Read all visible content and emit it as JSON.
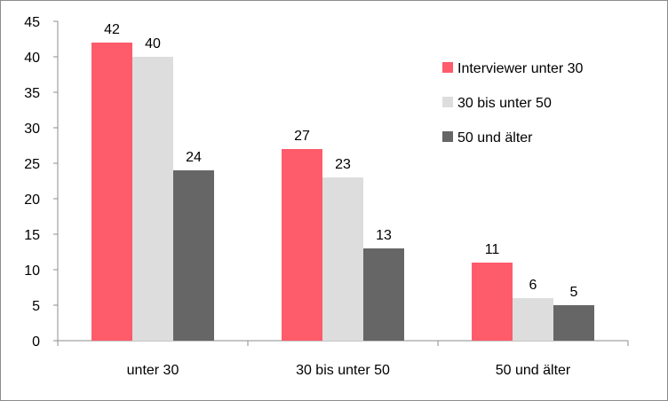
{
  "chart_data": {
    "type": "bar",
    "categories": [
      "unter 30",
      "30 bis unter 50",
      "50 und älter"
    ],
    "series": [
      {
        "name": "Interviewer unter 30",
        "values": [
          42,
          27,
          11
        ],
        "color": "#fe5b6b"
      },
      {
        "name": "30 bis unter 50",
        "values": [
          40,
          23,
          6
        ],
        "color": "#dddddd"
      },
      {
        "name": "50 und älter",
        "values": [
          24,
          13,
          5
        ],
        "color": "#666666"
      }
    ],
    "yticks": [
      0,
      5,
      10,
      15,
      20,
      25,
      30,
      35,
      40,
      45
    ],
    "ylim": [
      0,
      45
    ],
    "legend_position": "right",
    "grid": false
  }
}
